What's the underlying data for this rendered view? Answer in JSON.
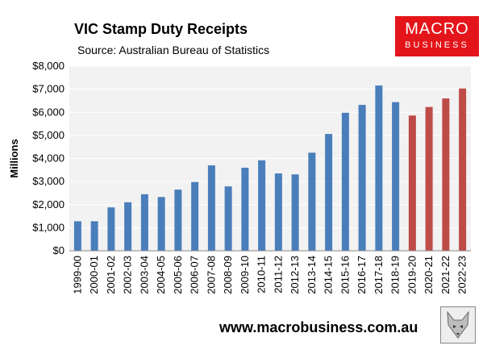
{
  "header": {
    "title": "VIC Stamp Duty Receipts",
    "subtitle": "Source: Australian Bureau of Statistics"
  },
  "logo": {
    "line1": "MACRO",
    "line2": "BUSINESS"
  },
  "footer": {
    "url": "www.macrobusiness.com.au",
    "mascot_icon": "fox-mascot-icon"
  },
  "colors": {
    "actual": "#4a7ebb",
    "forecast": "#be4b48",
    "plot_background": "#f2f2f2"
  },
  "chart_data": {
    "type": "bar",
    "title": "VIC Stamp Duty Receipts",
    "subtitle": "Source: Australian Bureau of Statistics",
    "xlabel": "",
    "ylabel": "Millions",
    "ylim": [
      0,
      8000
    ],
    "ytick_values": [
      0,
      1000,
      2000,
      3000,
      4000,
      5000,
      6000,
      7000,
      8000
    ],
    "ytick_labels": [
      "$0",
      "$1,000",
      "$2,000",
      "$3,000",
      "$4,000",
      "$5,000",
      "$6,000",
      "$7,000",
      "$8,000"
    ],
    "grid": "horizontal",
    "legend": "none",
    "categories": [
      "1999-00",
      "2000-01",
      "2001-02",
      "2002-03",
      "2003-04",
      "2004-05",
      "2005-06",
      "2006-07",
      "2007-08",
      "2008-09",
      "2009-10",
      "2010-11",
      "2011-12",
      "2012-13",
      "2013-14",
      "2014-15",
      "2015-16",
      "2016-17",
      "2017-18",
      "2018-19",
      "2019-20",
      "2020-21",
      "2021-22",
      "2022-23"
    ],
    "values": [
      1280,
      1280,
      1880,
      2100,
      2450,
      2330,
      2650,
      2980,
      3700,
      2790,
      3600,
      3920,
      3350,
      3310,
      4250,
      5060,
      5980,
      6320,
      7160,
      6440,
      5860,
      6230,
      6600,
      7030
    ],
    "bar_colors": [
      "#4a7ebb",
      "#4a7ebb",
      "#4a7ebb",
      "#4a7ebb",
      "#4a7ebb",
      "#4a7ebb",
      "#4a7ebb",
      "#4a7ebb",
      "#4a7ebb",
      "#4a7ebb",
      "#4a7ebb",
      "#4a7ebb",
      "#4a7ebb",
      "#4a7ebb",
      "#4a7ebb",
      "#4a7ebb",
      "#4a7ebb",
      "#4a7ebb",
      "#4a7ebb",
      "#4a7ebb",
      "#be4b48",
      "#be4b48",
      "#be4b48",
      "#be4b48"
    ]
  }
}
